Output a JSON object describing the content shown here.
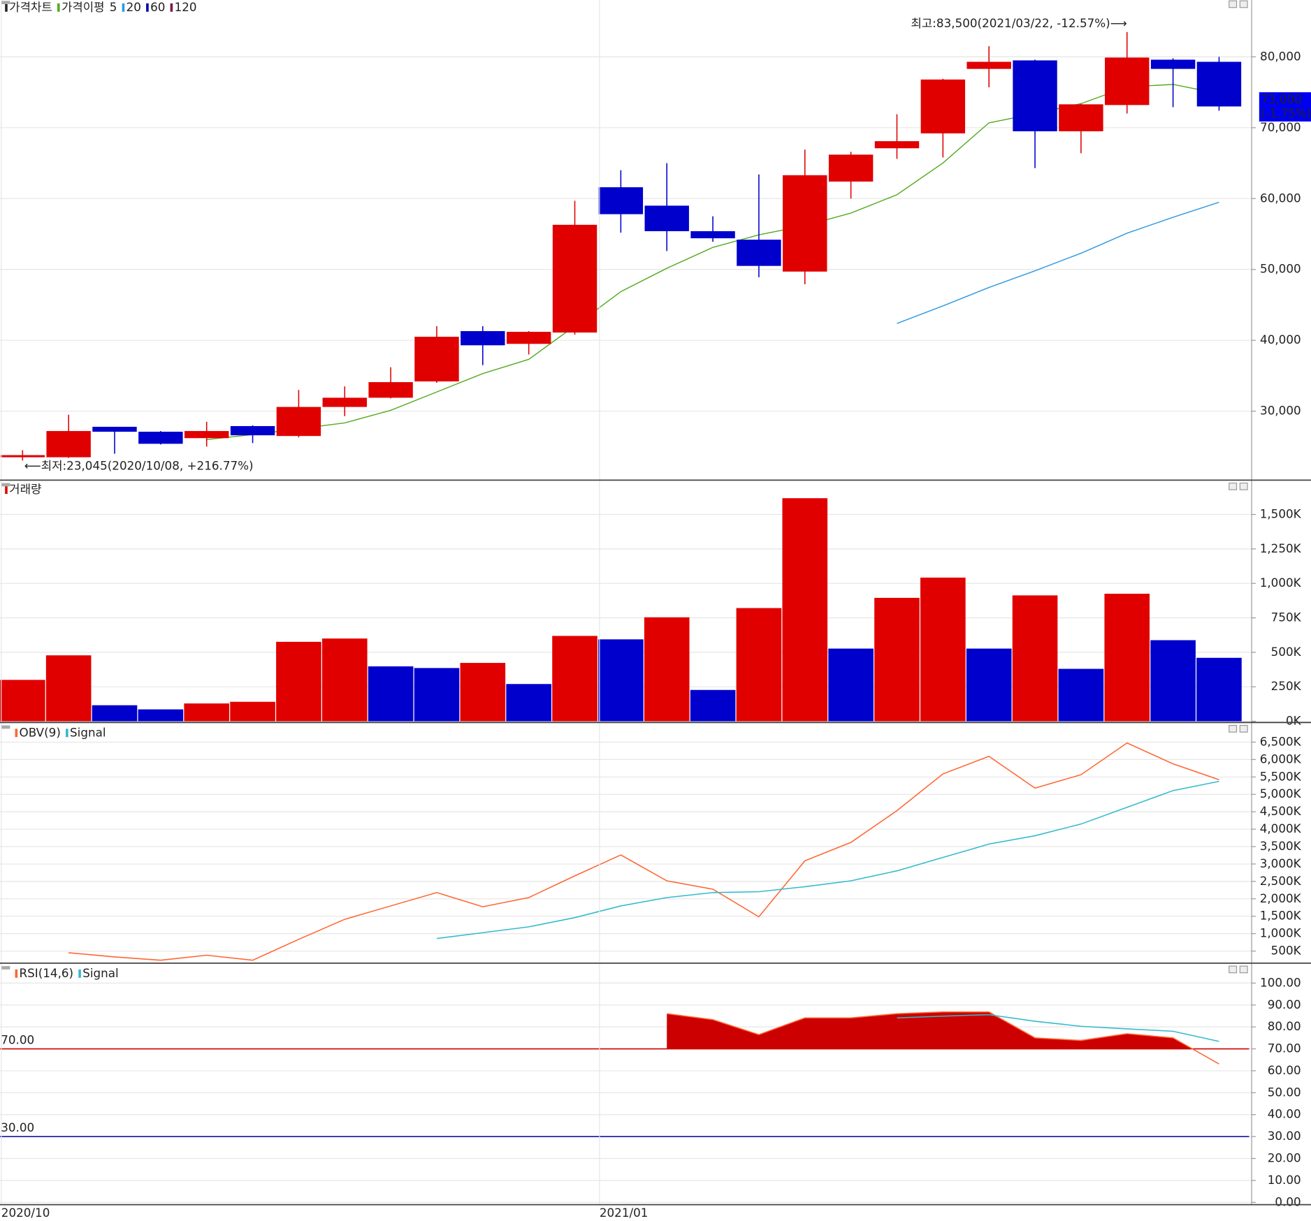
{
  "chart_data": [
    {
      "type": "candlestick",
      "title": "가격차트",
      "ma_label": "가격이평",
      "up_color": "#e00000",
      "down_color": "#0000cc",
      "open": [
        23500,
        23500,
        27800,
        27100,
        26200,
        27900,
        26500,
        30600,
        31900,
        34200,
        41300,
        39500,
        41100,
        61600,
        59000,
        55400,
        54200,
        49700,
        62400,
        67100,
        69200,
        78300,
        79500,
        69500,
        73200,
        79600,
        79300
      ],
      "close": [
        23800,
        27200,
        27100,
        25400,
        27200,
        26600,
        30600,
        31900,
        34100,
        40500,
        39300,
        41200,
        56300,
        57800,
        55400,
        54400,
        50500,
        63300,
        66200,
        68100,
        76800,
        79300,
        69500,
        73300,
        79900,
        78300,
        73000
      ],
      "high": [
        24500,
        29500,
        27800,
        27200,
        28500,
        28000,
        33000,
        33500,
        36200,
        42000,
        42000,
        41300,
        59700,
        64000,
        65000,
        57500,
        63400,
        66900,
        66600,
        71900,
        76900,
        81500,
        79600,
        73400,
        83500,
        79800,
        80000
      ],
      "low": [
        23045,
        23400,
        24000,
        25300,
        25000,
        25500,
        26300,
        29300,
        31800,
        34000,
        36500,
        38000,
        40800,
        55200,
        52600,
        53900,
        48900,
        47900,
        60000,
        65600,
        65800,
        75700,
        64300,
        66400,
        72000,
        72900,
        72400
      ],
      "series": [
        {
          "name": "5",
          "color": "#55aa22",
          "values": [
            null,
            null,
            null,
            null,
            25990,
            26700,
            27520,
            28350,
            30120,
            32710,
            35310,
            37310,
            42030,
            46860,
            50170,
            53110,
            54880,
            56180,
            57950,
            60540,
            65020,
            70680,
            71980,
            73400,
            75760,
            76110,
            74810
          ]
        },
        {
          "name": "20",
          "color": "#2f9ae0",
          "values": [
            null,
            null,
            null,
            null,
            null,
            null,
            null,
            null,
            null,
            null,
            null,
            null,
            null,
            null,
            null,
            null,
            null,
            null,
            null,
            42380,
            44860,
            47450,
            49810,
            52290,
            55120,
            57360,
            59480
          ]
        },
        {
          "name": "60",
          "color": "#0000aa",
          "values": [
            null,
            null,
            null,
            null,
            null,
            null,
            null,
            null,
            null,
            null,
            null,
            null,
            null,
            null,
            null,
            null,
            null,
            null,
            null,
            null,
            null,
            null,
            null,
            null,
            null,
            null,
            null
          ]
        },
        {
          "name": "120",
          "color": "#7a1a4a",
          "values": [
            null,
            null,
            null,
            null,
            null,
            null,
            null,
            null,
            null,
            null,
            null,
            null,
            null,
            null,
            null,
            null,
            null,
            null,
            null,
            null,
            null,
            null,
            null,
            null,
            null,
            null,
            null
          ]
        }
      ],
      "max_label": "최고:83,500(2021/03/22, -12.57%)⟶",
      "min_label": "⟵최저:23,045(2020/10/08, +216.77%)",
      "last_price_label": "73,000",
      "last_change_label": "(-1.75%)",
      "ylim": [
        20450,
        88020
      ],
      "yticks": [
        {
          "value": 30000,
          "label": "30,000"
        },
        {
          "value": 40000,
          "label": "40,000"
        },
        {
          "value": 50000,
          "label": "50,000"
        },
        {
          "value": 60000,
          "label": "60,000"
        },
        {
          "value": 70000,
          "label": "70,000"
        },
        {
          "value": 80000,
          "label": "80,000"
        }
      ],
      "grid": true
    },
    {
      "type": "bar",
      "title": "거래량",
      "up_color": "#e00000",
      "down_color": "#0000cc",
      "values": [
        300,
        478,
        116,
        86,
        129,
        141,
        576,
        600,
        398,
        386,
        423,
        270,
        619,
        594,
        754,
        227,
        821,
        1618,
        527,
        895,
        1042,
        527,
        913,
        380,
        925,
        588,
        460
      ],
      "ylim": [
        0,
        1740
      ],
      "yticks": [
        {
          "value": 0,
          "label": "0K"
        },
        {
          "value": 250,
          "label": "250K"
        },
        {
          "value": 500,
          "label": "500K"
        },
        {
          "value": 750,
          "label": "750K"
        },
        {
          "value": 1000,
          "label": "1,000K"
        },
        {
          "value": 1250,
          "label": "1,250K"
        },
        {
          "value": 1500,
          "label": "1,500K"
        }
      ],
      "grid": true
    },
    {
      "type": "line",
      "series": [
        {
          "name": "OBV(9)",
          "color": "#ff6633",
          "values": [
            null,
            452,
            332,
            236,
            380,
            236,
            836,
            1412,
            1796,
            2180,
            1772,
            2036,
            2660,
            3260,
            2516,
            2276,
            1484,
            3092,
            3620,
            4532,
            5588,
            6092,
            5180,
            5564,
            6476,
            5876,
            5420
          ]
        },
        {
          "name": "Signal",
          "color": "#33bbcc",
          "values": [
            null,
            null,
            null,
            null,
            null,
            null,
            null,
            null,
            null,
            860,
            1028,
            1196,
            1460,
            1796,
            2036,
            2180,
            2204,
            2348,
            2516,
            2804,
            3188,
            3572,
            3812,
            4148,
            4628,
            5108,
            5372
          ]
        }
      ],
      "ylim": [
        188,
        7028
      ],
      "yticks": [
        {
          "value": 500,
          "label": "500K"
        },
        {
          "value": 1000,
          "label": "1,000K"
        },
        {
          "value": 1500,
          "label": "1,500K"
        },
        {
          "value": 2000,
          "label": "2,000K"
        },
        {
          "value": 2500,
          "label": "2,500K"
        },
        {
          "value": 3000,
          "label": "3,000K"
        },
        {
          "value": 3500,
          "label": "3,500K"
        },
        {
          "value": 4000,
          "label": "4,000K"
        },
        {
          "value": 4500,
          "label": "4,500K"
        },
        {
          "value": 5000,
          "label": "5,000K"
        },
        {
          "value": 5500,
          "label": "5,500K"
        },
        {
          "value": 6000,
          "label": "6,000K"
        },
        {
          "value": 6500,
          "label": "6,500K"
        }
      ],
      "grid": true
    },
    {
      "type": "line",
      "series": [
        {
          "name": "RSI(14,6)",
          "color": "#ff6633",
          "values": [
            null,
            null,
            null,
            null,
            null,
            null,
            null,
            null,
            null,
            null,
            null,
            null,
            null,
            null,
            86,
            83.3,
            76.5,
            84.1,
            84.1,
            86,
            86.8,
            86.8,
            75,
            73.8,
            76.9,
            75,
            63.1
          ]
        },
        {
          "name": "Signal",
          "color": "#33bbcc",
          "values": [
            null,
            null,
            null,
            null,
            null,
            null,
            null,
            null,
            null,
            null,
            null,
            null,
            null,
            null,
            null,
            null,
            null,
            null,
            null,
            84.1,
            84.9,
            85.6,
            82.6,
            80.3,
            79.1,
            78,
            73.4
          ]
        }
      ],
      "fill_color": "#cc0000",
      "hlines": [
        {
          "value": 70,
          "label": "70.00",
          "color": "#cc0000"
        },
        {
          "value": 30,
          "label": "30.00",
          "color": "#000099"
        }
      ],
      "ylim": [
        -0.5,
        108.5
      ],
      "yticks": [
        {
          "value": 0,
          "label": "0.00"
        },
        {
          "value": 10,
          "label": "10.00"
        },
        {
          "value": 20,
          "label": "20.00"
        },
        {
          "value": 30,
          "label": "30.00"
        },
        {
          "value": 40,
          "label": "40.00"
        },
        {
          "value": 50,
          "label": "50.00"
        },
        {
          "value": 60,
          "label": "60.00"
        },
        {
          "value": 70,
          "label": "70.00"
        },
        {
          "value": 80,
          "label": "80.00"
        },
        {
          "value": 90,
          "label": "90.00"
        },
        {
          "value": 100,
          "label": "100.00"
        }
      ],
      "xticks": [
        {
          "value": 0,
          "label": "2020/10"
        },
        {
          "value": 13,
          "label": "2021/01"
        }
      ],
      "grid": true
    }
  ]
}
